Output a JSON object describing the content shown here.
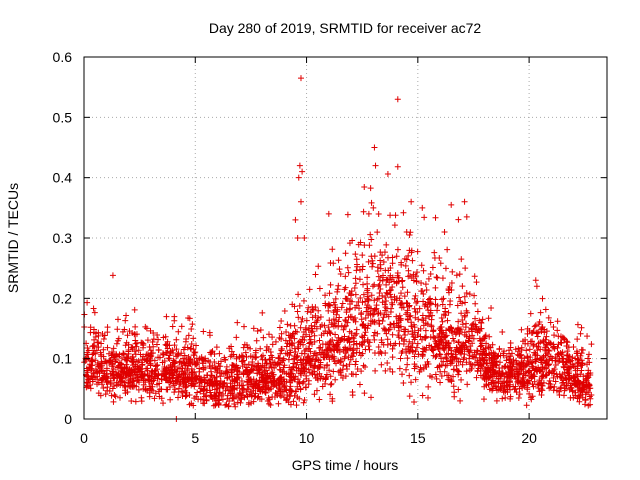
{
  "chart_data": {
    "type": "scatter",
    "title": "Day 280 of 2019, SRMTID for receiver ac72",
    "xlabel": "GPS time / hours",
    "ylabel": "SRMTID / TECUs",
    "xlim": [
      0,
      23.5
    ],
    "ylim": [
      0,
      0.6
    ],
    "xticks": [
      0,
      5,
      10,
      15,
      20
    ],
    "yticks": [
      0,
      0.1,
      0.2,
      0.3,
      0.4,
      0.5,
      0.6
    ],
    "xtick_labels": [
      "0",
      "5",
      "10",
      "15",
      "20"
    ],
    "ytick_labels": [
      "0",
      "0.1",
      "0.2",
      "0.3",
      "0.4",
      "0.5",
      "0.6"
    ],
    "grid": true,
    "marker": "+",
    "color": "#e00000",
    "profile_hours": [
      0,
      1,
      2,
      3,
      4,
      5,
      6,
      7,
      8,
      9,
      9.5,
      10,
      11,
      12,
      12.5,
      13,
      14,
      15,
      16,
      17,
      17.5,
      18,
      19,
      20,
      20.5,
      21,
      22,
      22.8
    ],
    "profile_center": [
      0.09,
      0.08,
      0.08,
      0.08,
      0.08,
      0.07,
      0.06,
      0.06,
      0.07,
      0.07,
      0.09,
      0.1,
      0.12,
      0.14,
      0.16,
      0.18,
      0.17,
      0.15,
      0.13,
      0.13,
      0.12,
      0.09,
      0.07,
      0.08,
      0.1,
      0.09,
      0.07,
      0.06
    ],
    "profile_spread": [
      0.04,
      0.035,
      0.035,
      0.035,
      0.035,
      0.035,
      0.035,
      0.035,
      0.035,
      0.04,
      0.06,
      0.05,
      0.06,
      0.07,
      0.08,
      0.08,
      0.08,
      0.07,
      0.06,
      0.06,
      0.05,
      0.035,
      0.03,
      0.04,
      0.05,
      0.04,
      0.03,
      0.03
    ],
    "base_points_per_hour": 140,
    "outliers": [
      {
        "x": 9.75,
        "y": 0.565
      },
      {
        "x": 14.1,
        "y": 0.53
      },
      {
        "x": 13.05,
        "y": 0.45
      },
      {
        "x": 13.1,
        "y": 0.42
      },
      {
        "x": 14.1,
        "y": 0.418
      },
      {
        "x": 9.7,
        "y": 0.42
      },
      {
        "x": 9.8,
        "y": 0.41
      },
      {
        "x": 9.65,
        "y": 0.4
      },
      {
        "x": 9.75,
        "y": 0.36
      },
      {
        "x": 14.7,
        "y": 0.36
      },
      {
        "x": 16.5,
        "y": 0.355
      },
      {
        "x": 15.2,
        "y": 0.35
      },
      {
        "x": 17.1,
        "y": 0.36
      },
      {
        "x": 12.8,
        "y": 0.34
      },
      {
        "x": 11.0,
        "y": 0.34
      },
      {
        "x": 13.0,
        "y": 0.35
      },
      {
        "x": 9.5,
        "y": 0.33
      },
      {
        "x": 17.2,
        "y": 0.335
      },
      {
        "x": 9.6,
        "y": 0.3
      },
      {
        "x": 9.9,
        "y": 0.3
      },
      {
        "x": 14.5,
        "y": 0.31
      },
      {
        "x": 16.2,
        "y": 0.31
      },
      {
        "x": 1.3,
        "y": 0.238
      },
      {
        "x": 20.3,
        "y": 0.23
      },
      {
        "x": 20.35,
        "y": 0.22
      },
      {
        "x": 4.15,
        "y": 0.0
      }
    ]
  }
}
